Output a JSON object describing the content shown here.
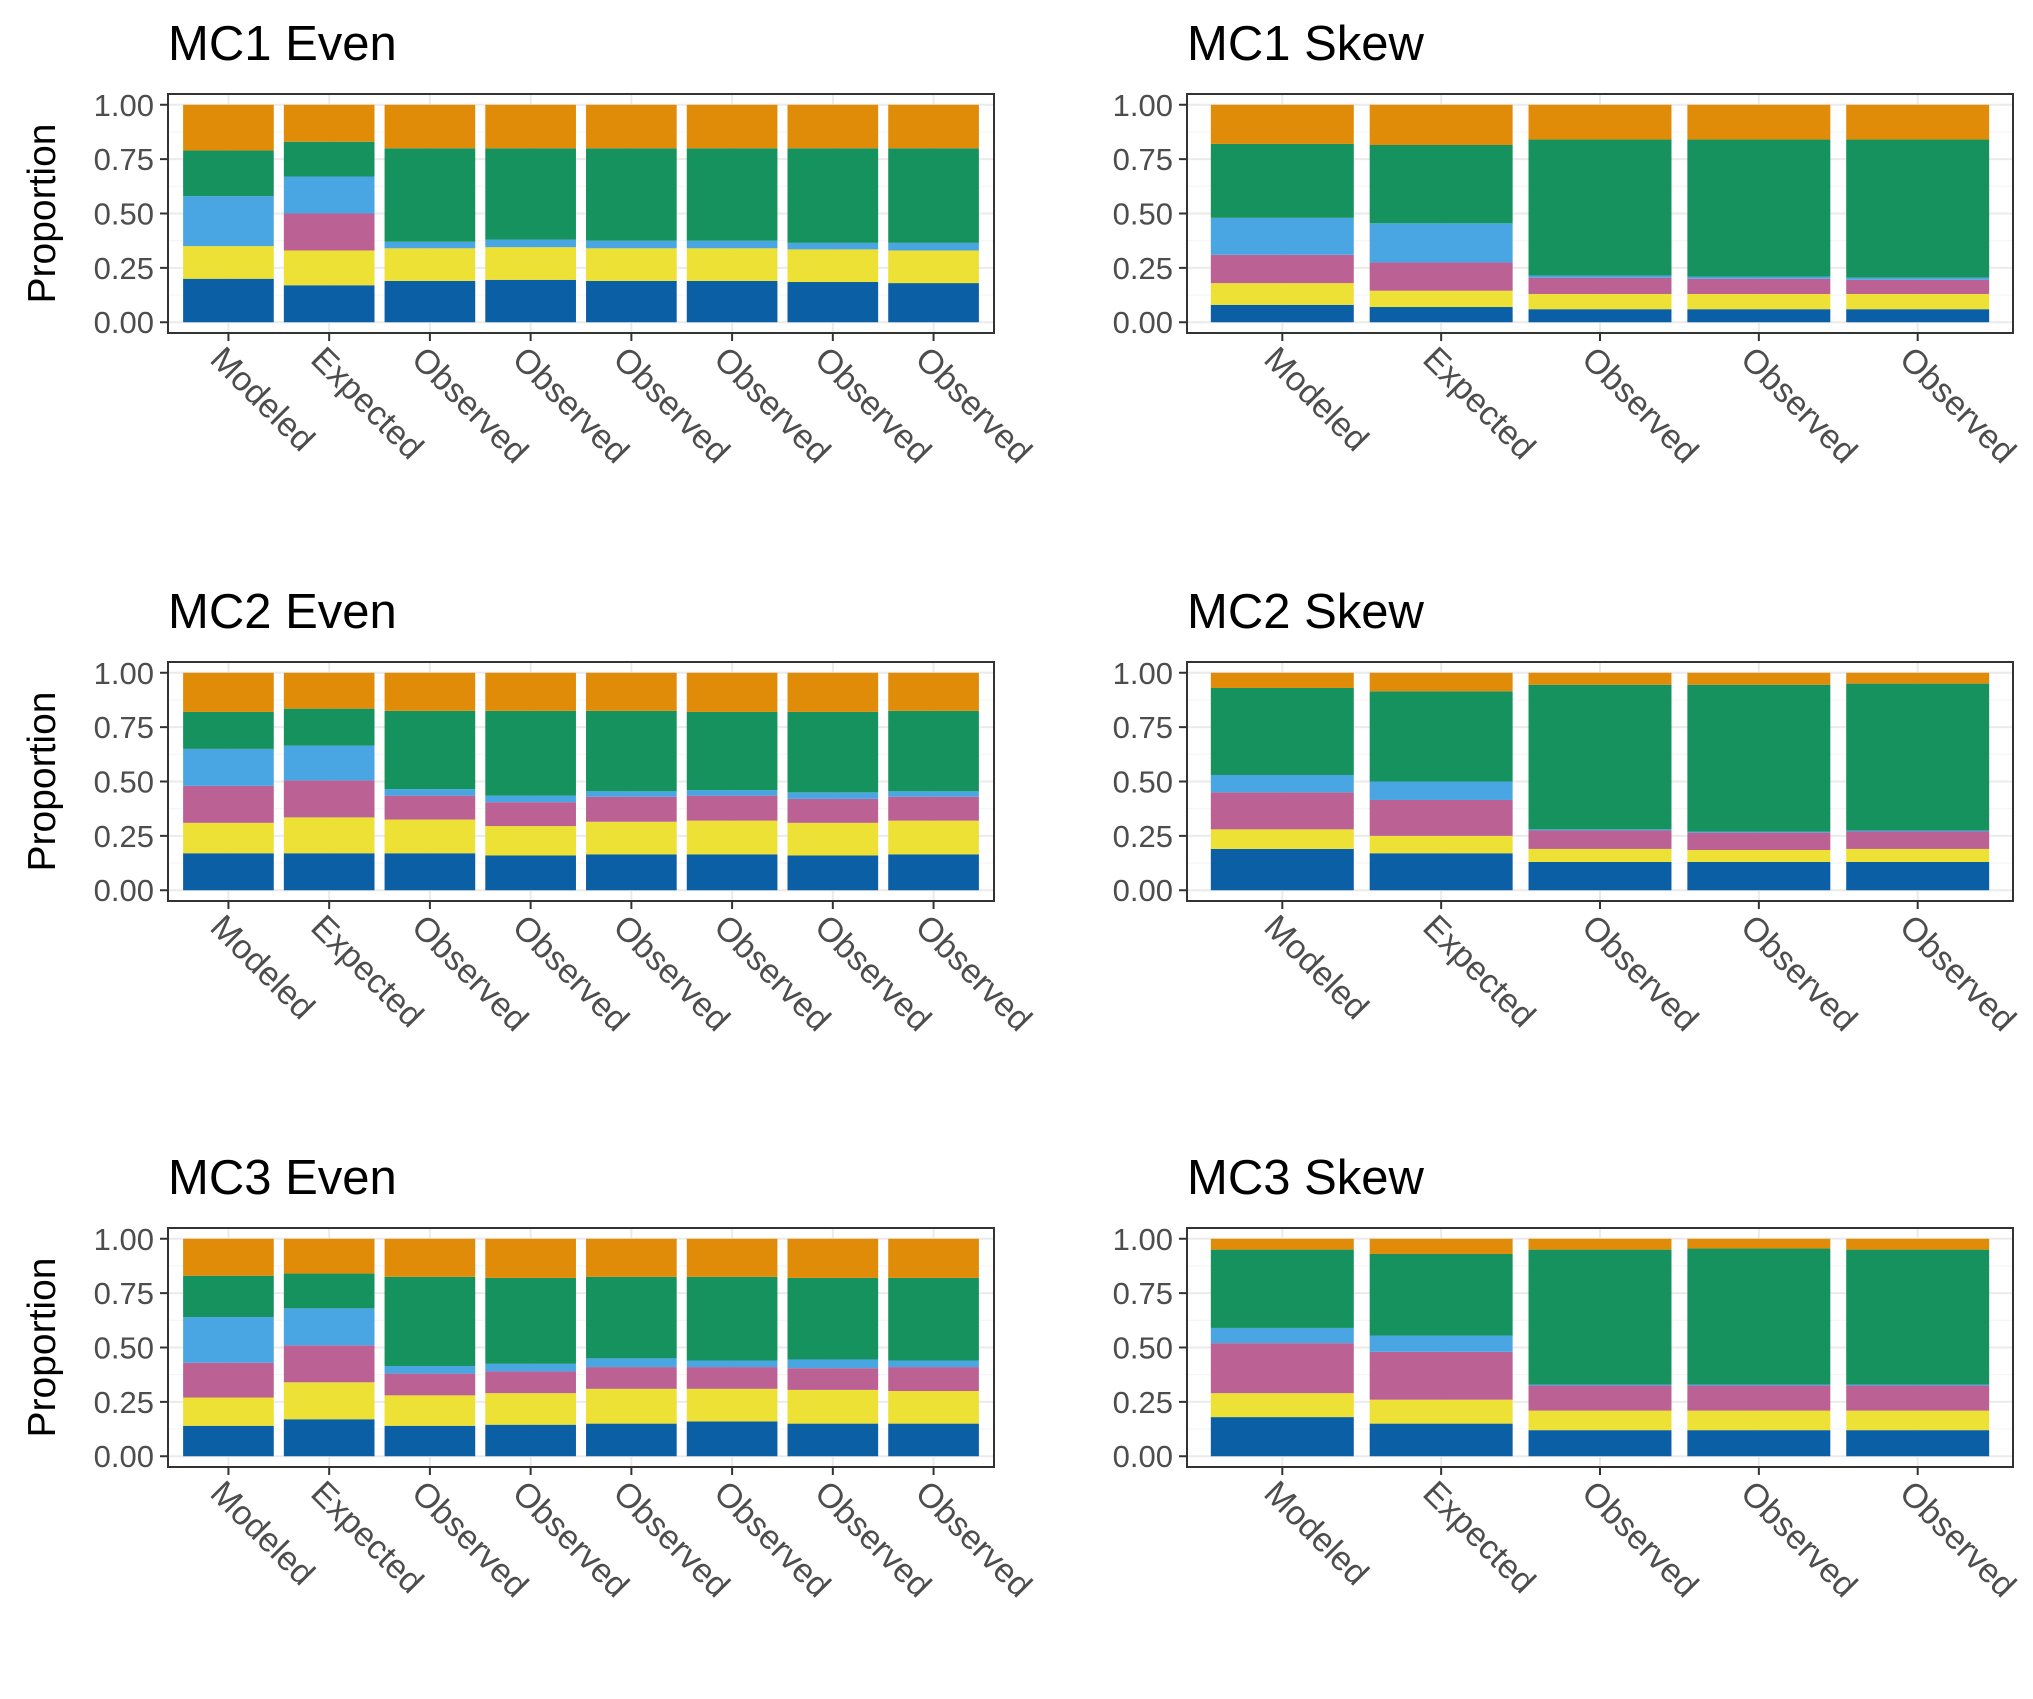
{
  "colors": {
    "segments": [
      "#0b5fa5",
      "#ece134",
      "#bb6194",
      "#4aa6e2",
      "#16925f",
      "#e08c09"
    ],
    "panel_border": "#333333",
    "grid_major": "#ebebeb",
    "grid_minor": "#f5f5f5"
  },
  "chart_data": [
    {
      "type": "bar",
      "stacked": true,
      "title": "MC1 Even",
      "xlabel": "",
      "ylabel": "Proportion",
      "ylim": [
        0,
        1
      ],
      "yticks": [
        "0.00",
        "0.25",
        "0.50",
        "0.75",
        "1.00"
      ],
      "categories": [
        "Modeled",
        "Expected",
        "Observed",
        "Observed",
        "Observed",
        "Observed",
        "Observed",
        "Observed"
      ],
      "stacks": [
        [
          0.2,
          0.15,
          0.0,
          0.23,
          0.21,
          0.21
        ],
        [
          0.17,
          0.16,
          0.17,
          0.17,
          0.16,
          0.17
        ],
        [
          0.19,
          0.15,
          0.0,
          0.03,
          0.43,
          0.2
        ],
        [
          0.195,
          0.15,
          0.0,
          0.035,
          0.42,
          0.2
        ],
        [
          0.19,
          0.15,
          0.0,
          0.035,
          0.425,
          0.2
        ],
        [
          0.19,
          0.15,
          0.0,
          0.035,
          0.425,
          0.2
        ],
        [
          0.185,
          0.15,
          0.0,
          0.03,
          0.435,
          0.2
        ],
        [
          0.18,
          0.15,
          0.0,
          0.035,
          0.435,
          0.2
        ]
      ]
    },
    {
      "type": "bar",
      "stacked": true,
      "title": "MC1 Skew",
      "xlabel": "",
      "ylabel": "",
      "ylim": [
        0,
        1
      ],
      "yticks": [
        "0.00",
        "0.25",
        "0.50",
        "0.75",
        "1.00"
      ],
      "categories": [
        "Modeled",
        "Expected",
        "Observed",
        "Observed",
        "Observed"
      ],
      "stacks": [
        [
          0.08,
          0.1,
          0.13,
          0.17,
          0.34,
          0.18
        ],
        [
          0.07,
          0.075,
          0.13,
          0.18,
          0.36,
          0.185
        ],
        [
          0.06,
          0.07,
          0.075,
          0.01,
          0.625,
          0.16
        ],
        [
          0.06,
          0.07,
          0.07,
          0.01,
          0.63,
          0.16
        ],
        [
          0.06,
          0.07,
          0.065,
          0.01,
          0.635,
          0.16
        ]
      ]
    },
    {
      "type": "bar",
      "stacked": true,
      "title": "MC2 Even",
      "xlabel": "",
      "ylabel": "Proportion",
      "ylim": [
        0,
        1
      ],
      "yticks": [
        "0.00",
        "0.25",
        "0.50",
        "0.75",
        "1.00"
      ],
      "categories": [
        "Modeled",
        "Expected",
        "Observed",
        "Observed",
        "Observed",
        "Observed",
        "Observed",
        "Observed"
      ],
      "stacks": [
        [
          0.17,
          0.14,
          0.17,
          0.17,
          0.17,
          0.18
        ],
        [
          0.17,
          0.165,
          0.17,
          0.16,
          0.17,
          0.165
        ],
        [
          0.17,
          0.155,
          0.11,
          0.03,
          0.36,
          0.175
        ],
        [
          0.16,
          0.135,
          0.11,
          0.03,
          0.39,
          0.175
        ],
        [
          0.165,
          0.15,
          0.115,
          0.025,
          0.37,
          0.175
        ],
        [
          0.165,
          0.155,
          0.115,
          0.025,
          0.36,
          0.18
        ],
        [
          0.16,
          0.15,
          0.11,
          0.03,
          0.37,
          0.18
        ],
        [
          0.165,
          0.155,
          0.11,
          0.025,
          0.37,
          0.175
        ]
      ]
    },
    {
      "type": "bar",
      "stacked": true,
      "title": "MC2 Skew",
      "xlabel": "",
      "ylabel": "",
      "ylim": [
        0,
        1
      ],
      "yticks": [
        "0.00",
        "0.25",
        "0.50",
        "0.75",
        "1.00"
      ],
      "categories": [
        "Modeled",
        "Expected",
        "Observed",
        "Observed",
        "Observed"
      ],
      "stacks": [
        [
          0.19,
          0.09,
          0.17,
          0.08,
          0.4,
          0.07
        ],
        [
          0.17,
          0.08,
          0.165,
          0.085,
          0.415,
          0.085
        ],
        [
          0.13,
          0.06,
          0.085,
          0.005,
          0.665,
          0.055
        ],
        [
          0.13,
          0.055,
          0.08,
          0.005,
          0.675,
          0.055
        ],
        [
          0.13,
          0.06,
          0.08,
          0.005,
          0.675,
          0.05
        ]
      ]
    },
    {
      "type": "bar",
      "stacked": true,
      "title": "MC3 Even",
      "xlabel": "",
      "ylabel": "Proportion",
      "ylim": [
        0,
        1
      ],
      "yticks": [
        "0.00",
        "0.25",
        "0.50",
        "0.75",
        "1.00"
      ],
      "categories": [
        "Modeled",
        "Expected",
        "Observed",
        "Observed",
        "Observed",
        "Observed",
        "Observed",
        "Observed"
      ],
      "stacks": [
        [
          0.14,
          0.13,
          0.16,
          0.21,
          0.19,
          0.17
        ],
        [
          0.17,
          0.17,
          0.17,
          0.17,
          0.16,
          0.16
        ],
        [
          0.14,
          0.14,
          0.1,
          0.035,
          0.41,
          0.175
        ],
        [
          0.145,
          0.145,
          0.1,
          0.035,
          0.395,
          0.18
        ],
        [
          0.15,
          0.16,
          0.1,
          0.04,
          0.375,
          0.175
        ],
        [
          0.16,
          0.15,
          0.1,
          0.03,
          0.385,
          0.175
        ],
        [
          0.15,
          0.155,
          0.1,
          0.04,
          0.375,
          0.18
        ],
        [
          0.15,
          0.15,
          0.11,
          0.03,
          0.38,
          0.18
        ]
      ]
    },
    {
      "type": "bar",
      "stacked": true,
      "title": "MC3 Skew",
      "xlabel": "",
      "ylabel": "",
      "ylim": [
        0,
        1
      ],
      "yticks": [
        "0.00",
        "0.25",
        "0.50",
        "0.75",
        "1.00"
      ],
      "categories": [
        "Modeled",
        "Expected",
        "Observed",
        "Observed",
        "Observed"
      ],
      "stacks": [
        [
          0.18,
          0.11,
          0.23,
          0.07,
          0.36,
          0.05
        ],
        [
          0.15,
          0.11,
          0.22,
          0.075,
          0.375,
          0.07
        ],
        [
          0.12,
          0.09,
          0.115,
          0.005,
          0.62,
          0.05
        ],
        [
          0.12,
          0.09,
          0.115,
          0.005,
          0.625,
          0.045
        ],
        [
          0.12,
          0.09,
          0.115,
          0.005,
          0.62,
          0.05
        ]
      ]
    }
  ]
}
